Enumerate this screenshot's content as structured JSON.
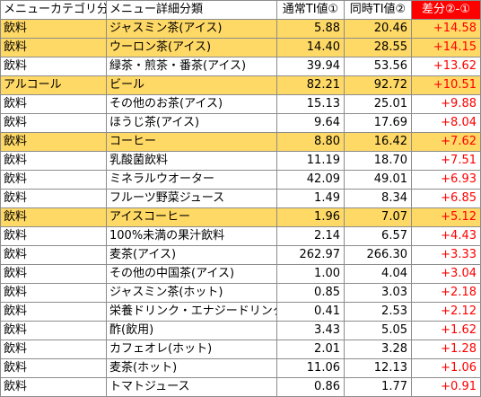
{
  "colors": {
    "highlight": "#ffd966",
    "diff_text": "#ff0000",
    "diff_header_bg": "#ff0000",
    "border": "#8c8c8c"
  },
  "headers": {
    "category": "メニューカテゴリ分類",
    "detail": "メニュー詳細分類",
    "normal": "通常TI値①",
    "simultaneous": "同時TI値②",
    "diff": "差分②-①"
  },
  "rows": [
    {
      "category": "飲料",
      "detail": "ジャスミン茶(アイス)",
      "normal": "5.88",
      "simultaneous": "20.46",
      "diff": "+14.58",
      "highlight": true
    },
    {
      "category": "飲料",
      "detail": "ウーロン茶(アイス)",
      "normal": "14.40",
      "simultaneous": "28.55",
      "diff": "+14.15",
      "highlight": true
    },
    {
      "category": "飲料",
      "detail": "緑茶・煎茶・番茶(アイス)",
      "normal": "39.94",
      "simultaneous": "53.56",
      "diff": "+13.62",
      "highlight": false
    },
    {
      "category": "アルコール",
      "detail": "ビール",
      "normal": "82.21",
      "simultaneous": "92.72",
      "diff": "+10.51",
      "highlight": true
    },
    {
      "category": "飲料",
      "detail": "その他のお茶(アイス)",
      "normal": "15.13",
      "simultaneous": "25.01",
      "diff": "+9.88",
      "highlight": false
    },
    {
      "category": "飲料",
      "detail": "ほうじ茶(アイス)",
      "normal": "9.64",
      "simultaneous": "17.69",
      "diff": "+8.04",
      "highlight": false
    },
    {
      "category": "飲料",
      "detail": "コーヒー",
      "normal": "8.80",
      "simultaneous": "16.42",
      "diff": "+7.62",
      "highlight": true
    },
    {
      "category": "飲料",
      "detail": "乳酸菌飲料",
      "normal": "11.19",
      "simultaneous": "18.70",
      "diff": "+7.51",
      "highlight": false
    },
    {
      "category": "飲料",
      "detail": "ミネラルウオーター",
      "normal": "42.09",
      "simultaneous": "49.01",
      "diff": "+6.93",
      "highlight": false
    },
    {
      "category": "飲料",
      "detail": "フルーツ野菜ジュース",
      "normal": "1.49",
      "simultaneous": "8.34",
      "diff": "+6.85",
      "highlight": false
    },
    {
      "category": "飲料",
      "detail": "アイスコーヒー",
      "normal": "1.96",
      "simultaneous": "7.07",
      "diff": "+5.12",
      "highlight": true
    },
    {
      "category": "飲料",
      "detail": "100%未満の果汁飲料",
      "normal": "2.14",
      "simultaneous": "6.57",
      "diff": "+4.43",
      "highlight": false
    },
    {
      "category": "飲料",
      "detail": "麦茶(アイス)",
      "normal": "262.97",
      "simultaneous": "266.30",
      "diff": "+3.33",
      "highlight": false
    },
    {
      "category": "飲料",
      "detail": "その他の中国茶(アイス)",
      "normal": "1.00",
      "simultaneous": "4.04",
      "diff": "+3.04",
      "highlight": false
    },
    {
      "category": "飲料",
      "detail": "ジャスミン茶(ホット)",
      "normal": "0.85",
      "simultaneous": "3.03",
      "diff": "+2.18",
      "highlight": false
    },
    {
      "category": "飲料",
      "detail": "栄養ドリンク・エナジードリンク",
      "normal": "0.41",
      "simultaneous": "2.53",
      "diff": "+2.12",
      "highlight": false
    },
    {
      "category": "飲料",
      "detail": "酢(飲用)",
      "normal": "3.43",
      "simultaneous": "5.05",
      "diff": "+1.62",
      "highlight": false
    },
    {
      "category": "飲料",
      "detail": "カフェオレ(ホット)",
      "normal": "2.01",
      "simultaneous": "3.28",
      "diff": "+1.28",
      "highlight": false
    },
    {
      "category": "飲料",
      "detail": "麦茶(ホット)",
      "normal": "11.06",
      "simultaneous": "12.13",
      "diff": "+1.06",
      "highlight": false
    },
    {
      "category": "飲料",
      "detail": "トマトジュース",
      "normal": "0.86",
      "simultaneous": "1.77",
      "diff": "+0.91",
      "highlight": false
    }
  ]
}
